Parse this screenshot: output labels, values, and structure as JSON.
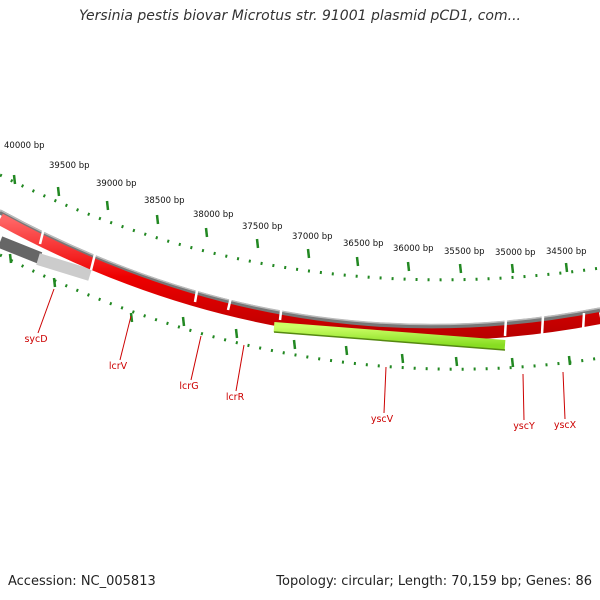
{
  "title": "Yersinia pestis biovar Microtus str. 91001 plasmid pCD1, com...",
  "ruler": {
    "unit": "bp",
    "labels": [
      "40000 bp",
      "39500 bp",
      "39000 bp",
      "38500 bp",
      "38000 bp",
      "37500 bp",
      "37000 bp",
      "36500 bp",
      "36000 bp",
      "35500 bp",
      "35000 bp",
      "34500 bp"
    ]
  },
  "genes": [
    {
      "name": "sycD"
    },
    {
      "name": "lcrV"
    },
    {
      "name": "lcrG"
    },
    {
      "name": "lcrR"
    },
    {
      "name": "yscV"
    },
    {
      "name": "yscY"
    },
    {
      "name": "yscX"
    }
  ],
  "colors": {
    "gene": "#ee0000",
    "highlight": "#99ee22",
    "backbone": "#888888",
    "tick": "#228822",
    "gene_label": "#cc0000"
  },
  "footer": {
    "accession": "Accession: NC_005813",
    "summary": "Topology: circular; Length: 70,159 bp; Genes: 86"
  }
}
